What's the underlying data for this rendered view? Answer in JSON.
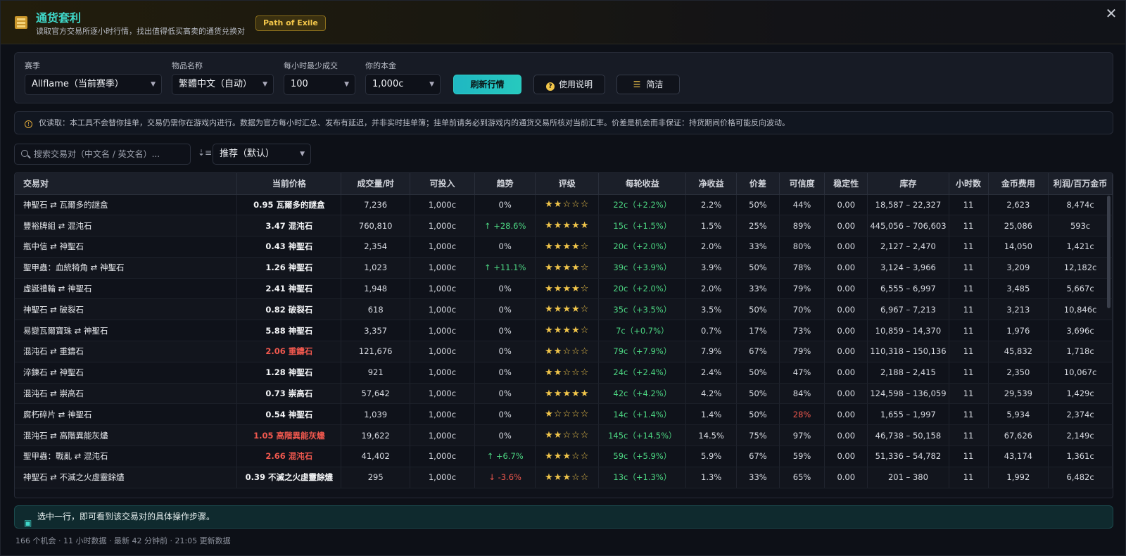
{
  "header": {
    "title": "通货套利",
    "subtitle": "读取官方交易所逐小时行情，找出值得低买高卖的通货兑换对",
    "badge": "Path of Exile",
    "close_icon": "close-icon",
    "colors": {
      "title": "#3fd7c9",
      "badge": "#f2c64a"
    }
  },
  "filters": {
    "season": {
      "label": "赛季",
      "value": "Allflame（当前赛季）"
    },
    "item_name": {
      "label": "物品名称",
      "value": "繁體中文（自动）"
    },
    "min_volume": {
      "label": "每小时最少成交",
      "value": "100"
    },
    "capital": {
      "label": "你的本金",
      "value": "1,000c"
    },
    "refresh_label": "刷新行情",
    "help_label": "使用说明",
    "compact_label": "简洁"
  },
  "notice": "仅读取：本工具不会替你挂单，交易仍需你在游戏内进行。数据为官方每小时汇总、发布有延迟，并非实时挂单簿；挂单前请务必到游戏内的通货交易所核对当前汇率。价差是机会而非保证：持货期间价格可能反向波动。",
  "search": {
    "placeholder": "搜索交易对（中文名 / 英文名）..."
  },
  "sort": {
    "value": "推荐（默认）"
  },
  "table": {
    "columns": [
      "交易对",
      "当前价格",
      "成交量/时",
      "可投入",
      "趋势",
      "评级",
      "每轮收益",
      "净收益",
      "价差",
      "可信度",
      "稳定性",
      "库存",
      "小时数",
      "金币费用",
      "利润/百万金币"
    ],
    "rows": [
      {
        "pair": "神聖石 ⇄ 瓦爾多的謎盒",
        "price": "0.95 瓦爾多的謎盒",
        "price_alert": false,
        "volume": "7,236",
        "invest": "1,000c",
        "trend": "0%",
        "trend_dir": "flat",
        "stars": "★★☆☆☆",
        "gain": "22c（+2.2%）",
        "net": "2.2%",
        "spread": "50%",
        "confidence": "44%",
        "low_conf": false,
        "stability": "0.00",
        "stock": "18,587 – 22,327",
        "hours": "11",
        "gold": "2,623",
        "profit": "8,474c"
      },
      {
        "pair": "豐裕牌組 ⇄ 混沌石",
        "price": "3.47 混沌石",
        "price_alert": false,
        "volume": "760,810",
        "invest": "1,000c",
        "trend": "↑ +28.6%",
        "trend_dir": "up",
        "stars": "★★★★★",
        "gain": "15c（+1.5%）",
        "net": "1.5%",
        "spread": "25%",
        "confidence": "89%",
        "low_conf": false,
        "stability": "0.00",
        "stock": "445,056 – 706,603",
        "hours": "11",
        "gold": "25,086",
        "profit": "593c"
      },
      {
        "pair": "瓶中信 ⇄ 神聖石",
        "price": "0.43 神聖石",
        "price_alert": false,
        "volume": "2,354",
        "invest": "1,000c",
        "trend": "0%",
        "trend_dir": "flat",
        "stars": "★★★★☆",
        "gain": "20c（+2.0%）",
        "net": "2.0%",
        "spread": "33%",
        "confidence": "80%",
        "low_conf": false,
        "stability": "0.00",
        "stock": "2,127 – 2,470",
        "hours": "11",
        "gold": "14,050",
        "profit": "1,421c"
      },
      {
        "pair": "聖甲蟲：血統犄角 ⇄ 神聖石",
        "price": "1.26 神聖石",
        "price_alert": false,
        "volume": "1,023",
        "invest": "1,000c",
        "trend": "↑ +11.1%",
        "trend_dir": "up",
        "stars": "★★★★☆",
        "gain": "39c（+3.9%）",
        "net": "3.9%",
        "spread": "50%",
        "confidence": "78%",
        "low_conf": false,
        "stability": "0.00",
        "stock": "3,124 – 3,966",
        "hours": "11",
        "gold": "3,209",
        "profit": "12,182c"
      },
      {
        "pair": "虛誕禮輪 ⇄ 神聖石",
        "price": "2.41 神聖石",
        "price_alert": false,
        "volume": "1,948",
        "invest": "1,000c",
        "trend": "0%",
        "trend_dir": "flat",
        "stars": "★★★★☆",
        "gain": "20c（+2.0%）",
        "net": "2.0%",
        "spread": "33%",
        "confidence": "79%",
        "low_conf": false,
        "stability": "0.00",
        "stock": "6,555 – 6,997",
        "hours": "11",
        "gold": "3,485",
        "profit": "5,667c"
      },
      {
        "pair": "神聖石 ⇄ 破裂石",
        "price": "0.82 破裂石",
        "price_alert": false,
        "volume": "618",
        "invest": "1,000c",
        "trend": "0%",
        "trend_dir": "flat",
        "stars": "★★★★☆",
        "gain": "35c（+3.5%）",
        "net": "3.5%",
        "spread": "50%",
        "confidence": "70%",
        "low_conf": false,
        "stability": "0.00",
        "stock": "6,967 – 7,213",
        "hours": "11",
        "gold": "3,213",
        "profit": "10,846c"
      },
      {
        "pair": "易變瓦爾寶珠 ⇄ 神聖石",
        "price": "5.88 神聖石",
        "price_alert": false,
        "volume": "3,357",
        "invest": "1,000c",
        "trend": "0%",
        "trend_dir": "flat",
        "stars": "★★★★☆",
        "gain": "7c（+0.7%）",
        "net": "0.7%",
        "spread": "17%",
        "confidence": "73%",
        "low_conf": false,
        "stability": "0.00",
        "stock": "10,859 – 14,370",
        "hours": "11",
        "gold": "1,976",
        "profit": "3,696c"
      },
      {
        "pair": "混沌石 ⇄ 重鑄石",
        "price": "2.06 重鑄石",
        "price_alert": true,
        "volume": "121,676",
        "invest": "1,000c",
        "trend": "0%",
        "trend_dir": "flat",
        "stars": "★★☆☆☆",
        "gain": "79c（+7.9%）",
        "net": "7.9%",
        "spread": "67%",
        "confidence": "79%",
        "low_conf": false,
        "stability": "0.00",
        "stock": "110,318 – 150,136",
        "hours": "11",
        "gold": "45,832",
        "profit": "1,718c"
      },
      {
        "pair": "淬鍊石 ⇄ 神聖石",
        "price": "1.28 神聖石",
        "price_alert": false,
        "volume": "921",
        "invest": "1,000c",
        "trend": "0%",
        "trend_dir": "flat",
        "stars": "★★☆☆☆",
        "gain": "24c（+2.4%）",
        "net": "2.4%",
        "spread": "50%",
        "confidence": "47%",
        "low_conf": false,
        "stability": "0.00",
        "stock": "2,188 – 2,415",
        "hours": "11",
        "gold": "2,350",
        "profit": "10,067c"
      },
      {
        "pair": "混沌石 ⇄ 崇高石",
        "price": "0.73 崇高石",
        "price_alert": false,
        "volume": "57,642",
        "invest": "1,000c",
        "trend": "0%",
        "trend_dir": "flat",
        "stars": "★★★★★",
        "gain": "42c（+4.2%）",
        "net": "4.2%",
        "spread": "50%",
        "confidence": "84%",
        "low_conf": false,
        "stability": "0.00",
        "stock": "124,598 – 136,059",
        "hours": "11",
        "gold": "29,539",
        "profit": "1,429c"
      },
      {
        "pair": "腐朽碎片 ⇄ 神聖石",
        "price": "0.54 神聖石",
        "price_alert": false,
        "volume": "1,039",
        "invest": "1,000c",
        "trend": "0%",
        "trend_dir": "flat",
        "stars": "★☆☆☆☆",
        "gain": "14c（+1.4%）",
        "net": "1.4%",
        "spread": "50%",
        "confidence": "28%",
        "low_conf": true,
        "stability": "0.00",
        "stock": "1,655 – 1,997",
        "hours": "11",
        "gold": "5,934",
        "profit": "2,374c"
      },
      {
        "pair": "混沌石 ⇄ 高階異能灰燼",
        "price": "1.05 高階異能灰燼",
        "price_alert": true,
        "volume": "19,622",
        "invest": "1,000c",
        "trend": "0%",
        "trend_dir": "flat",
        "stars": "★★☆☆☆",
        "gain": "145c（+14.5%）",
        "net": "14.5%",
        "spread": "75%",
        "confidence": "97%",
        "low_conf": false,
        "stability": "0.00",
        "stock": "46,738 – 50,158",
        "hours": "11",
        "gold": "67,626",
        "profit": "2,149c"
      },
      {
        "pair": "聖甲蟲：戰亂 ⇄ 混沌石",
        "price": "2.66 混沌石",
        "price_alert": true,
        "volume": "41,402",
        "invest": "1,000c",
        "trend": "↑ +6.7%",
        "trend_dir": "up",
        "stars": "★★★☆☆",
        "gain": "59c（+5.9%）",
        "net": "5.9%",
        "spread": "67%",
        "confidence": "59%",
        "low_conf": false,
        "stability": "0.00",
        "stock": "51,336 – 54,782",
        "hours": "11",
        "gold": "43,174",
        "profit": "1,361c"
      },
      {
        "pair": "神聖石 ⇄ 不滅之火虛靈餘燼",
        "price": "0.39 不滅之火虛靈餘燼",
        "price_alert": false,
        "volume": "295",
        "invest": "1,000c",
        "trend": "↓ -3.6%",
        "trend_dir": "down",
        "stars": "★★★☆☆",
        "gain": "13c（+1.3%）",
        "net": "1.3%",
        "spread": "33%",
        "confidence": "65%",
        "low_conf": false,
        "stability": "0.00",
        "stock": "201 – 380",
        "hours": "11",
        "gold": "1,992",
        "profit": "6,482c"
      }
    ]
  },
  "hint": "选中一行，即可看到该交易对的具体操作步骤。",
  "status": "166 个机会 · 11 小时数据 · 最新 42 分钟前 · 21:05 更新数据"
}
